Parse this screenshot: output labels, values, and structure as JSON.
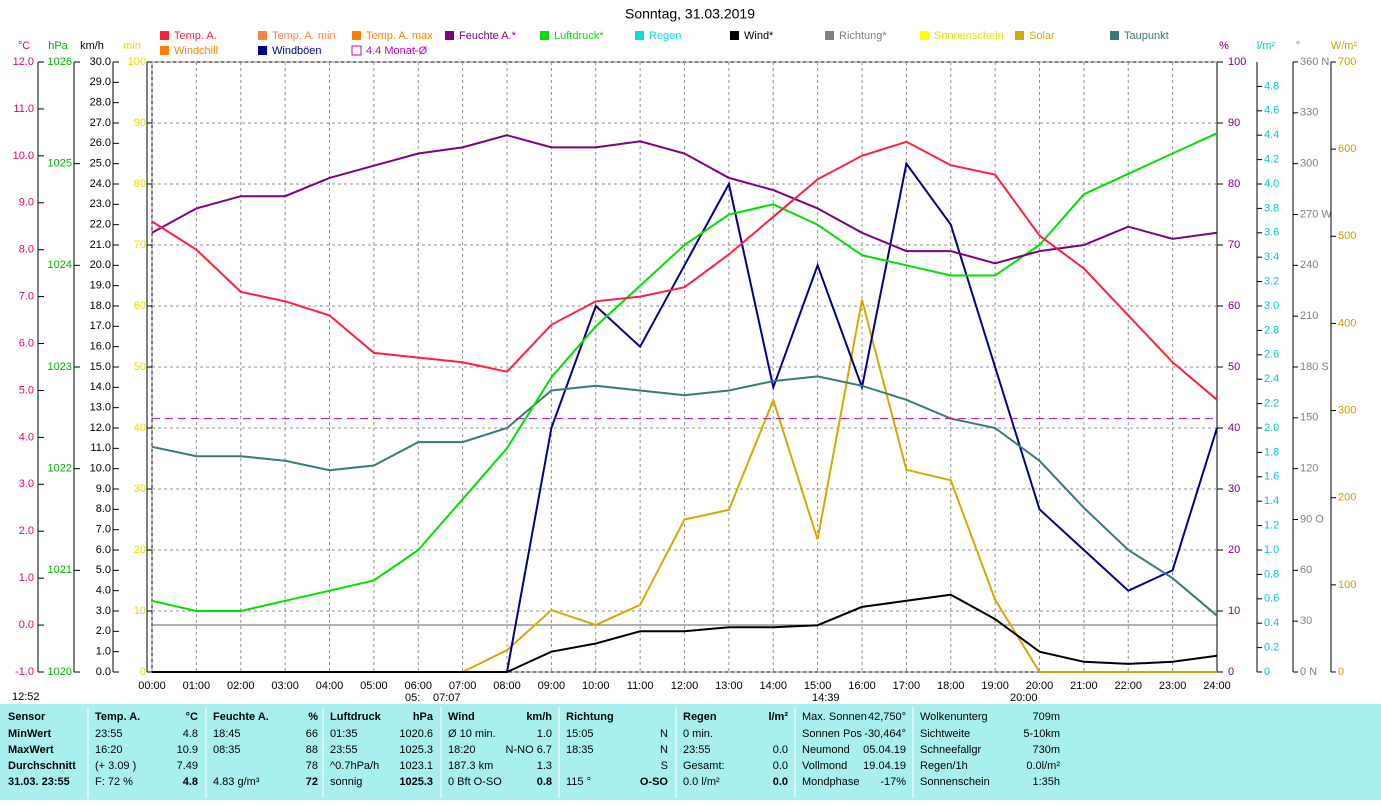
{
  "chart_data": {
    "type": "line",
    "title": "Sonntag, 31.03.2019",
    "xlim": [
      0,
      24
    ],
    "xgrid": true,
    "xticks": [
      {
        "value": 0,
        "label": "00:00"
      },
      {
        "value": 1,
        "label": "01:00"
      },
      {
        "value": 2,
        "label": "02:00"
      },
      {
        "value": 3,
        "label": "03:00"
      },
      {
        "value": 4,
        "label": "04:00"
      },
      {
        "value": 5,
        "label": "05:00"
      },
      {
        "value": 6,
        "label": "06:00"
      },
      {
        "value": 7,
        "label": "07:00"
      },
      {
        "value": 8,
        "label": "08:00"
      },
      {
        "value": 9,
        "label": "09:00"
      },
      {
        "value": 10,
        "label": "10:00"
      },
      {
        "value": 11,
        "label": "11:00"
      },
      {
        "value": 12,
        "label": "12:00"
      },
      {
        "value": 13,
        "label": "13:00"
      },
      {
        "value": 14,
        "label": "14:00"
      },
      {
        "value": 15,
        "label": "15:00"
      },
      {
        "value": 16,
        "label": "16:00"
      },
      {
        "value": 17,
        "label": "17:00"
      },
      {
        "value": 18,
        "label": "18:00"
      },
      {
        "value": 19,
        "label": "19:00"
      },
      {
        "value": 20,
        "label": "20:00"
      },
      {
        "value": 21,
        "label": "21:00"
      },
      {
        "value": 22,
        "label": "22:00"
      },
      {
        "value": 23,
        "label": "23:00"
      },
      {
        "value": 24,
        "label": "24:00"
      }
    ],
    "x": [
      0,
      1,
      2,
      3,
      4,
      5,
      6,
      7,
      8,
      9,
      10,
      11,
      12,
      13,
      14,
      15,
      16,
      17,
      18,
      19,
      20,
      21,
      22,
      23,
      24
    ],
    "axes": [
      {
        "unit": "°C",
        "color": "#e0007f",
        "lim": [
          -1,
          12
        ],
        "ticks": [
          {
            "value": -1,
            "label": "-1.0"
          },
          {
            "value": 0,
            "label": "0.0"
          },
          {
            "value": 1,
            "label": "1.0"
          },
          {
            "value": 2,
            "label": "2.0"
          },
          {
            "value": 3,
            "label": "3.0"
          },
          {
            "value": 4,
            "label": "4.0"
          },
          {
            "value": 5,
            "label": "5.0"
          },
          {
            "value": 6,
            "label": "6.0"
          },
          {
            "value": 7,
            "label": "7.0"
          },
          {
            "value": 8,
            "label": "8.0"
          },
          {
            "value": 9,
            "label": "9.0"
          },
          {
            "value": 10,
            "label": "10.0"
          },
          {
            "value": 11,
            "label": "11.0"
          },
          {
            "value": 12,
            "label": "12.0"
          }
        ]
      },
      {
        "unit": "hPa",
        "color": "#00b000",
        "lim": [
          1020,
          1026
        ],
        "ticks": [
          1020,
          1021,
          1022,
          1023,
          1024,
          1025,
          1026
        ]
      },
      {
        "unit": "km/h",
        "color": "#000000",
        "lim": [
          0,
          30
        ],
        "ticks": [
          {
            "value": 0,
            "label": "0.0"
          },
          {
            "value": 1,
            "label": "1.0"
          },
          {
            "value": 2,
            "label": "2.0"
          },
          {
            "value": 3,
            "label": "3.0"
          },
          {
            "value": 4,
            "label": "4.0"
          },
          {
            "value": 5,
            "label": "5.0"
          },
          {
            "value": 6,
            "label": "6.0"
          },
          {
            "value": 7,
            "label": "7.0"
          },
          {
            "value": 8,
            "label": "8.0"
          },
          {
            "value": 9,
            "label": "9.0"
          },
          {
            "value": 10,
            "label": "10.0"
          },
          {
            "value": 11,
            "label": "11.0"
          },
          {
            "value": 12,
            "label": "12.0"
          },
          {
            "value": 13,
            "label": "13.0"
          },
          {
            "value": 14,
            "label": "14.0"
          },
          {
            "value": 15,
            "label": "15.0"
          },
          {
            "value": 16,
            "label": "16.0"
          },
          {
            "value": 17,
            "label": "17.0"
          },
          {
            "value": 18,
            "label": "18.0"
          },
          {
            "value": 19,
            "label": "19.0"
          },
          {
            "value": 20,
            "label": "20.0"
          },
          {
            "value": 21,
            "label": "21.0"
          },
          {
            "value": 22,
            "label": "22.0"
          },
          {
            "value": 23,
            "label": "23.0"
          },
          {
            "value": 24,
            "label": "24.0"
          },
          {
            "value": 25,
            "label": "25.0"
          },
          {
            "value": 26,
            "label": "26.0"
          },
          {
            "value": 27,
            "label": "27.0"
          },
          {
            "value": 28,
            "label": "28.0"
          },
          {
            "value": 29,
            "label": "29.0"
          },
          {
            "value": 30,
            "label": "30.0"
          }
        ]
      },
      {
        "unit": "min",
        "color": "#e8d800",
        "lim": [
          0,
          100
        ],
        "ticks": [
          0,
          10,
          20,
          30,
          40,
          50,
          60,
          70,
          80,
          90,
          100
        ]
      },
      {
        "unit": "%",
        "color": "#800080",
        "lim": [
          0,
          100
        ],
        "ticks": [
          0,
          10,
          20,
          30,
          40,
          50,
          60,
          70,
          80,
          90,
          100
        ],
        "grid": true
      },
      {
        "unit": "l/m²",
        "color": "#00c8c8",
        "lim": [
          0,
          5
        ],
        "ticks": [
          0,
          0.2,
          0.4,
          0.6,
          0.8,
          {
            "value": 1,
            "label": "1.0"
          },
          1.2,
          1.4,
          1.6,
          1.8,
          {
            "value": 2,
            "label": "2.0"
          },
          2.2,
          2.4,
          2.6,
          2.8,
          {
            "value": 3,
            "label": "3.0"
          },
          3.2,
          3.4,
          3.6,
          3.8,
          {
            "value": 4,
            "label": "4.0"
          },
          4.2,
          4.4,
          4.6,
          4.8
        ]
      },
      {
        "unit": "°",
        "color": "#808080",
        "lim": [
          0,
          360
        ],
        "ticks": [
          {
            "value": 0,
            "label": "0 N"
          },
          30,
          60,
          {
            "value": 90,
            "label": "90 O"
          },
          120,
          150,
          {
            "value": 180,
            "label": "180 S"
          },
          210,
          240,
          {
            "value": 270,
            "label": "270 W"
          },
          300,
          330,
          {
            "value": 360,
            "label": "360 N"
          }
        ]
      },
      {
        "unit": "W/m²",
        "color": "#c8a000",
        "lim": [
          0,
          700
        ],
        "ticks": [
          0,
          100,
          200,
          300,
          400,
          500,
          600,
          700
        ]
      }
    ],
    "series": [
      {
        "name": "Temp. A.",
        "color": "#ff2040",
        "axis": 0,
        "values": [
          8.6,
          8.0,
          7.1,
          6.9,
          6.6,
          5.8,
          5.7,
          5.6,
          5.4,
          6.4,
          6.9,
          7.0,
          7.2,
          7.9,
          8.7,
          9.5,
          10.0,
          10.3,
          9.8,
          9.6,
          8.3,
          7.6,
          6.6,
          5.6,
          4.8
        ]
      },
      {
        "name": "Windchill",
        "color": "#ff8000"
      },
      {
        "name": "Temp. A. min",
        "color": "#ff8040"
      },
      {
        "name": "Windböen",
        "color": "#00008b",
        "axis": 2,
        "values": [
          0,
          0,
          0,
          0,
          0,
          0,
          0,
          0,
          0,
          12,
          18,
          16,
          20,
          24,
          14,
          20,
          14,
          25,
          22,
          15,
          8,
          6,
          4,
          5,
          12
        ]
      },
      {
        "name": "Temp. A. max",
        "color": "#ff8000"
      },
      {
        "name": "4.4 Monat-Ø",
        "color": "#c000c0",
        "axis": 0,
        "value": 4.4
      },
      {
        "name": "Feuchte A.*",
        "color": "#800080",
        "axis": 4,
        "values": [
          72,
          76,
          78,
          78,
          81,
          83,
          85,
          86,
          88,
          86,
          86,
          87,
          85,
          81,
          79,
          76,
          72,
          69,
          69,
          67,
          69,
          70,
          73,
          71,
          72
        ]
      },
      {
        "name": "Luftdruck*",
        "color": "#00e000",
        "axis": 1,
        "values": [
          1020.7,
          1020.6,
          1020.6,
          1020.7,
          1020.8,
          1020.9,
          1021.2,
          1021.7,
          1022.2,
          1022.9,
          1023.4,
          1023.8,
          1024.2,
          1024.5,
          1024.6,
          1024.4,
          1024.1,
          1024.0,
          1023.9,
          1023.9,
          1024.2,
          1024.7,
          1024.9,
          1025.1,
          1025.3
        ]
      },
      {
        "name": "Regen",
        "color": "#00e0e0"
      },
      {
        "name": "Wind*",
        "color": "#000000",
        "axis": 2,
        "values": [
          0,
          0,
          0,
          0,
          0,
          0,
          0,
          0,
          0,
          1.0,
          1.4,
          2.0,
          2.0,
          2.2,
          2.2,
          2.3,
          3.2,
          3.5,
          3.8,
          2.6,
          1.0,
          0.5,
          0.4,
          0.5,
          0.8
        ]
      },
      {
        "name": "Richtung*",
        "color": "#808080"
      },
      {
        "name": "Sonnenschein",
        "color": "#ffff00"
      },
      {
        "name": "Solar",
        "color": "#d4aa00",
        "axis": 7,
        "values": [
          0,
          0,
          0,
          0,
          0,
          0,
          0,
          0,
          25,
          71,
          54,
          77,
          175,
          186,
          312,
          152,
          427,
          232,
          220,
          83,
          0,
          0,
          0,
          0,
          0
        ]
      },
      {
        "name": "Taupunkt",
        "color": "#3c7878",
        "axis": 0,
        "values": [
          3.8,
          3.6,
          3.6,
          3.5,
          3.3,
          3.4,
          3.9,
          3.9,
          4.2,
          5.0,
          5.1,
          5.0,
          4.9,
          5.0,
          5.2,
          5.3,
          5.1,
          4.8,
          4.4,
          4.2,
          3.5,
          2.5,
          1.6,
          1.0,
          0.2
        ]
      }
    ],
    "annotations": [
      "12:52",
      "05:",
      "07:07",
      "14:39",
      "20:00"
    ]
  },
  "status": {
    "corner": "Sensor",
    "row_labels": [
      "MinWert",
      "MaxWert",
      "Durchschnitt",
      "31.03. 23:55"
    ],
    "columns": [
      {
        "title": "Temp. A.",
        "unit": "°C",
        "rows": [
          [
            "23:55",
            "4.8"
          ],
          [
            "16:20",
            "10.9"
          ],
          [
            "(+ 3.09 )",
            "7.49"
          ],
          [
            "F: 72 %",
            "4.8"
          ]
        ]
      },
      {
        "title": "Feuchte A.",
        "unit": "%",
        "rows": [
          [
            "18:45",
            "66"
          ],
          [
            "08:35",
            "88"
          ],
          [
            null,
            "78"
          ],
          [
            "4.83 g/m³",
            "72"
          ]
        ]
      },
      {
        "title": "Luftdruck",
        "unit": "hPa",
        "rows": [
          [
            "01:35",
            "1020.6"
          ],
          [
            "23:55",
            "1025.3"
          ],
          [
            "^0.7hPa/h",
            "1023.1"
          ],
          [
            "sonnig",
            "1025.3"
          ]
        ]
      },
      {
        "title": "Wind",
        "unit": "km/h",
        "rows": [
          [
            "Ø 10 min.",
            "1.0"
          ],
          [
            "18:20",
            "N-NO 6.7"
          ],
          [
            "187.3 km",
            "1.3"
          ],
          [
            "0 Bft O-SO",
            "0.8"
          ]
        ]
      },
      {
        "title": "Richtung",
        "rows": [
          [
            "15:05",
            "N"
          ],
          [
            "18:35",
            "N"
          ],
          [
            null,
            "S"
          ],
          [
            "115 °",
            "O-SO"
          ]
        ]
      },
      {
        "title": "Regen",
        "unit": "l/m²",
        "rows": [
          [
            "0 min.",
            null
          ],
          [
            "23:55",
            "0.0"
          ],
          [
            "Gesamt:",
            "0.0"
          ],
          [
            "0.0 l/m²",
            "0.0"
          ]
        ]
      },
      {
        "rows": [
          [
            "Max. Sonnen",
            "42,750°"
          ],
          [
            "Sonnen Pos",
            "-30,464°"
          ],
          [
            "Neumond",
            "05.04.19"
          ],
          [
            "Vollmond",
            "19.04.19"
          ],
          [
            "Mondphase",
            "-17%"
          ]
        ]
      },
      {
        "rows": [
          [
            "Wolkenunterg",
            "709m"
          ],
          [
            "Sichtweite",
            "5-10km"
          ],
          [
            "Schneefallgr",
            "730m"
          ],
          [
            "Regen/1h",
            "0.0l/m²"
          ],
          [
            "Sonnenschein",
            "1:35h"
          ]
        ]
      }
    ]
  }
}
